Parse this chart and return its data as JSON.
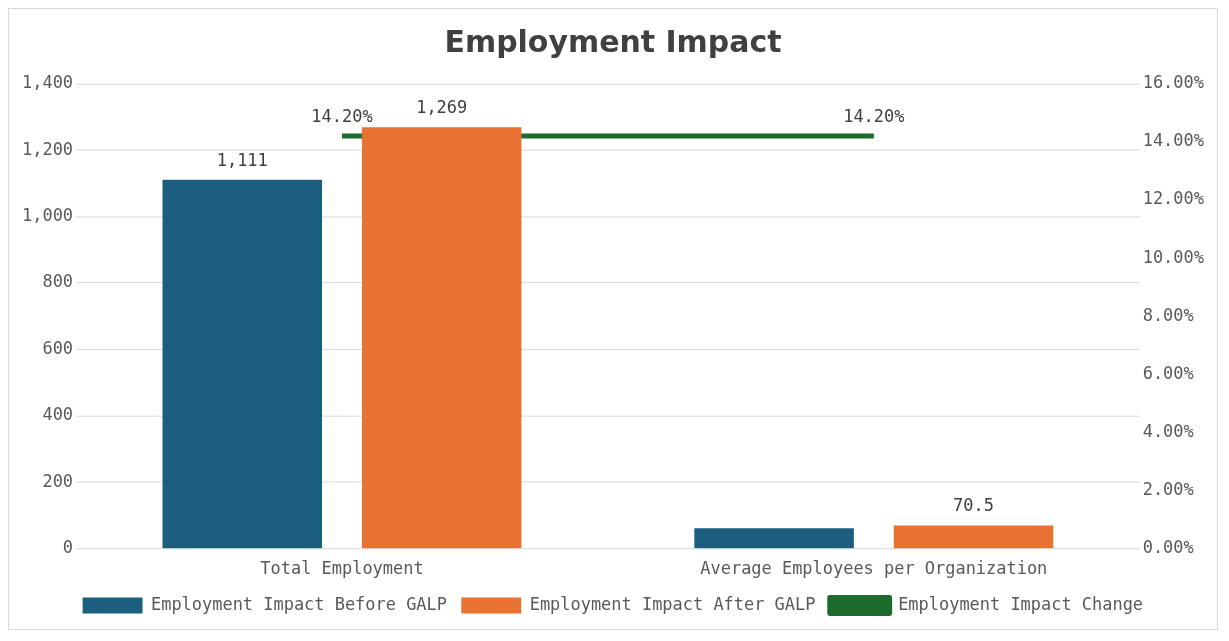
{
  "chart_data": {
    "type": "bar",
    "title": "Employment Impact",
    "categories": [
      "Total Employment",
      "Average Employees per Organization"
    ],
    "series": [
      {
        "name": "Employment Impact Before GALP",
        "color": "#1b5e80",
        "values": [
          1111,
          62
        ],
        "value_labels": [
          "1,111",
          null
        ]
      },
      {
        "name": "Employment Impact After GALP",
        "color": "#e97132",
        "values": [
          1269,
          70.5
        ],
        "value_labels": [
          "1,269",
          "70.5"
        ]
      },
      {
        "name": "Employment Impact Change",
        "type": "line",
        "axis": "y2",
        "color": "#1e6b2e",
        "values": [
          14.2,
          14.2
        ],
        "value_labels": [
          "14.20%",
          "14.20%"
        ]
      }
    ],
    "ylim": [
      0,
      1400
    ],
    "yticks": [
      0,
      200,
      400,
      600,
      800,
      {
        "value": 1000,
        "label": "1,000"
      },
      {
        "value": 1200,
        "label": "1,200"
      },
      {
        "value": 1400,
        "label": "1,400"
      }
    ],
    "y2lim": [
      0,
      16
    ],
    "y2ticks": [
      {
        "value": 0,
        "label": "0.00%"
      },
      {
        "value": 2,
        "label": "2.00%"
      },
      {
        "value": 4,
        "label": "4.00%"
      },
      {
        "value": 6,
        "label": "6.00%"
      },
      {
        "value": 8,
        "label": "8.00%"
      },
      {
        "value": 10,
        "label": "10.00%"
      },
      {
        "value": 12,
        "label": "12.00%"
      },
      {
        "value": 14,
        "label": "14.00%"
      },
      {
        "value": 16,
        "label": "16.00%"
      }
    ],
    "grid": "y",
    "legend": "bottom",
    "marker": "none",
    "line_style": "solid"
  }
}
